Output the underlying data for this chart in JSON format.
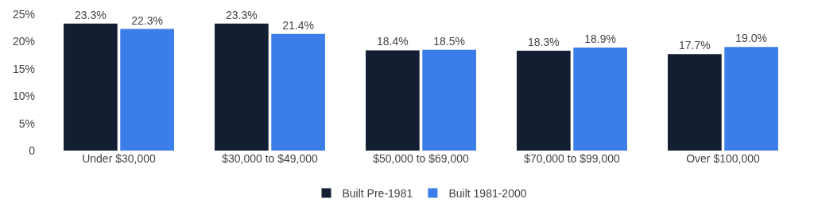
{
  "chart_data": {
    "type": "bar",
    "categories": [
      "Under $30,000",
      "$30,000 to $49,000",
      "$50,000 to $69,000",
      "$70,000 to $99,000",
      "Over $100,000"
    ],
    "series": [
      {
        "name": "Built Pre-1981",
        "color": "#141e33",
        "values": [
          23.3,
          23.3,
          18.4,
          18.3,
          17.7
        ],
        "value_labels": [
          "23.3%",
          "23.3%",
          "18.4%",
          "18.3%",
          "17.7%"
        ]
      },
      {
        "name": "Built 1981-2000",
        "color": "#3b7de9",
        "values": [
          22.3,
          21.4,
          18.5,
          18.9,
          19.0
        ],
        "value_labels": [
          "22.3%",
          "21.4%",
          "18.5%",
          "18.9%",
          "19.0%"
        ]
      }
    ],
    "ylim": [
      0,
      25
    ],
    "yticks": [
      0,
      {
        "value": 5,
        "label": "5%"
      },
      {
        "value": 10,
        "label": "10%"
      },
      {
        "value": 15,
        "label": "15%"
      },
      {
        "value": 20,
        "label": "20%"
      },
      {
        "value": 25,
        "label": "25%"
      }
    ],
    "legend": "bottom"
  }
}
